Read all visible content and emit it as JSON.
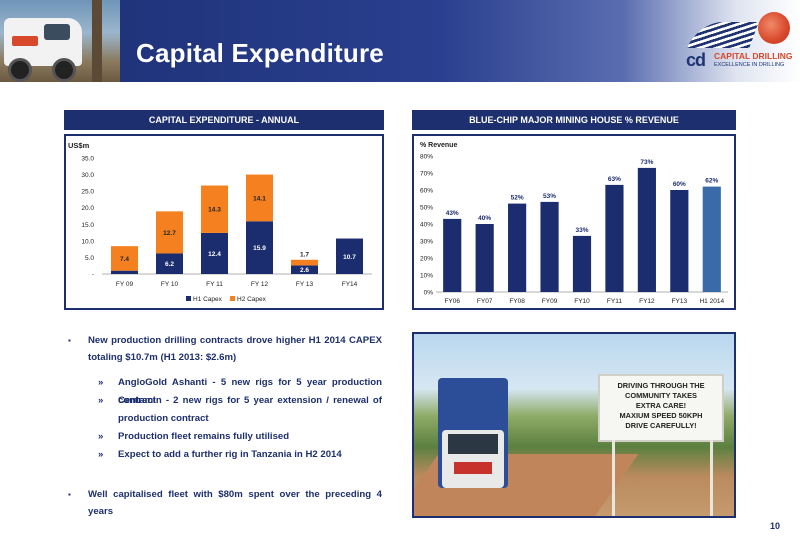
{
  "slide": {
    "title": "Capital Expenditure",
    "page_number": "10"
  },
  "logo": {
    "mark": "cd",
    "name": "CAPITAL DRILLING",
    "tagline": "EXCELLENCE IN DRILLING"
  },
  "left_panel": {
    "title": "CAPITAL EXPENDITURE - ANNUAL"
  },
  "right_panel": {
    "title": "BLUE-CHIP MAJOR MINING HOUSE % REVENUE"
  },
  "bullets": {
    "b1": "New production drilling contracts drove higher H1 2014 CAPEX totaling $10.7m (H1 2013: $2.6m)",
    "s1": "AngloGold Ashanti - 5 new rigs for 5 year production contract",
    "s2": "Centamin - 2 new rigs for 5 year extension / renewal of production contract",
    "s3": "Production fleet remains fully utilised",
    "s4": "Expect to add a further rig in Tanzania in H2 2014",
    "b2": "Well capitalised fleet with $80m spent over the preceding 4 years",
    "bullet_marker": "▪",
    "sub_marker": "»"
  },
  "photo": {
    "sign_lines": [
      "DRIVING THROUGH THE COMMUNITY TAKES",
      "EXTRA CARE!",
      "MAXIUM SPEED 50KPH",
      "DRIVE CAREFULLY!"
    ]
  },
  "chart_data": [
    {
      "type": "bar",
      "stacked": true,
      "ylabel": "US$m",
      "categories": [
        "FY 09",
        "FY 10",
        "FY 11",
        "FY 12",
        "FY 13",
        "FY14"
      ],
      "series": [
        {
          "name": "H1 Capex",
          "color": "#1b2d6e",
          "values": [
            1.0,
            6.2,
            12.4,
            15.9,
            2.6,
            10.7
          ],
          "labels": [
            "1.0",
            "6.2",
            "12.4",
            "15.9",
            "2.6",
            "10.7"
          ]
        },
        {
          "name": "H2 Capex",
          "color": "#f4801f",
          "values": [
            7.4,
            12.7,
            14.3,
            14.1,
            1.7,
            null
          ],
          "labels": [
            "7.4",
            "12.7",
            "14.3",
            "14.1",
            "1.7",
            ""
          ]
        }
      ],
      "ylim": [
        0,
        35
      ],
      "yticks": [
        0,
        5,
        10,
        15,
        20,
        25,
        30,
        35
      ],
      "ytick_labels": [
        "-",
        "5.0",
        "10.0",
        "15.0",
        "20.0",
        "25.0",
        "30.0",
        "35.0"
      ],
      "grid": false,
      "legend": "bottom"
    },
    {
      "type": "bar",
      "ylabel": "% Revenue",
      "categories": [
        "FY06",
        "FY07",
        "FY08",
        "FY09",
        "FY10",
        "FY11",
        "FY12",
        "FY13",
        "H1 2014"
      ],
      "values": [
        43,
        40,
        52,
        53,
        33,
        63,
        73,
        60,
        62
      ],
      "labels": [
        "43%",
        "40%",
        "52%",
        "53%",
        "33%",
        "63%",
        "73%",
        "60%",
        "62%"
      ],
      "colors": [
        "#1b2d6e",
        "#1b2d6e",
        "#1b2d6e",
        "#1b2d6e",
        "#1b2d6e",
        "#1b2d6e",
        "#1b2d6e",
        "#1b2d6e",
        "#3a6aa8"
      ],
      "ylim": [
        0,
        80
      ],
      "yticks": [
        0,
        10,
        20,
        30,
        40,
        50,
        60,
        70,
        80
      ],
      "ytick_labels": [
        "0%",
        "10%",
        "20%",
        "30%",
        "40%",
        "50%",
        "60%",
        "70%",
        "80%"
      ],
      "grid": false,
      "legend": "none"
    }
  ]
}
